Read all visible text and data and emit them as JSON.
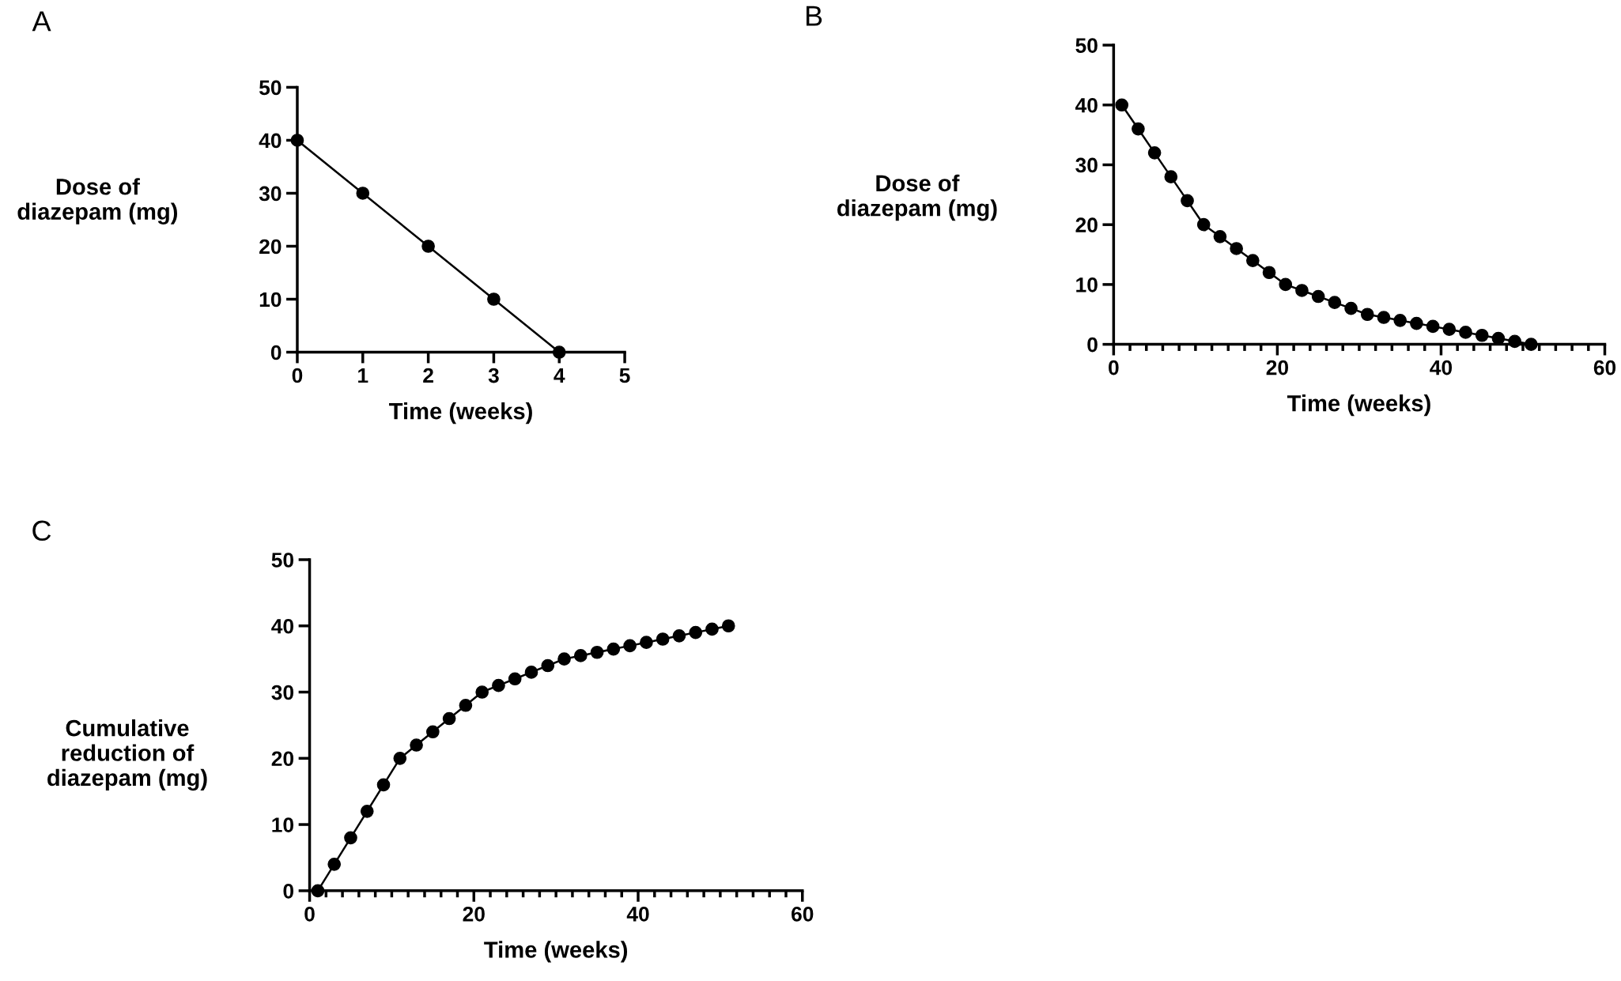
{
  "chart_data": [
    {
      "type": "line",
      "annotations": [
        "A"
      ],
      "xlabel": "Time (weeks)",
      "ylabel": "Dose of\ndiazepam (mg)",
      "marker": "circle",
      "line_style": "solid",
      "grid": false,
      "series": [
        {
          "color": "#000000",
          "x": [
            0,
            1,
            2,
            3,
            4
          ],
          "values": [
            40,
            30,
            20,
            10,
            0
          ]
        }
      ],
      "xlim": [
        0,
        5
      ],
      "xticks": [
        0,
        1,
        2,
        3,
        4,
        5
      ],
      "ylim": [
        0,
        50
      ],
      "yticks": [
        0,
        10,
        20,
        30,
        40,
        50
      ]
    },
    {
      "type": "line",
      "annotations": [
        "B"
      ],
      "xlabel": "Time (weeks)",
      "ylabel": "Dose of\ndiazepam (mg)",
      "marker": "circle",
      "line_style": "solid",
      "grid": false,
      "series": [
        {
          "color": "#000000",
          "x": [
            1,
            3,
            5,
            7,
            9,
            11,
            13,
            15,
            17,
            19,
            21,
            23,
            25,
            27,
            29,
            31,
            33,
            35,
            37,
            39,
            41,
            43,
            45,
            47,
            49,
            51
          ],
          "values": [
            40,
            36,
            32,
            28,
            24,
            20,
            18,
            16,
            14,
            12,
            10,
            9,
            8,
            7,
            6,
            5,
            4.5,
            4,
            3.5,
            3,
            2.5,
            2,
            1.5,
            1,
            0.5,
            0
          ]
        }
      ],
      "xlim": [
        0,
        60
      ],
      "xticks": [
        0,
        {
          "value": 2,
          "label": null
        },
        {
          "value": 4,
          "label": null
        },
        {
          "value": 6,
          "label": null
        },
        {
          "value": 8,
          "label": null
        },
        {
          "value": 10,
          "label": null
        },
        {
          "value": 12,
          "label": null
        },
        {
          "value": 14,
          "label": null
        },
        {
          "value": 16,
          "label": null
        },
        {
          "value": 18,
          "label": null
        },
        20,
        {
          "value": 22,
          "label": null
        },
        {
          "value": 24,
          "label": null
        },
        {
          "value": 26,
          "label": null
        },
        {
          "value": 28,
          "label": null
        },
        {
          "value": 30,
          "label": null
        },
        {
          "value": 32,
          "label": null
        },
        {
          "value": 34,
          "label": null
        },
        {
          "value": 36,
          "label": null
        },
        {
          "value": 38,
          "label": null
        },
        40,
        {
          "value": 42,
          "label": null
        },
        {
          "value": 44,
          "label": null
        },
        {
          "value": 46,
          "label": null
        },
        {
          "value": 48,
          "label": null
        },
        {
          "value": 50,
          "label": null
        },
        {
          "value": 52,
          "label": null
        },
        {
          "value": 54,
          "label": null
        },
        {
          "value": 56,
          "label": null
        },
        {
          "value": 58,
          "label": null
        },
        60
      ],
      "ylim": [
        0,
        50
      ],
      "yticks": [
        0,
        10,
        20,
        30,
        40,
        50
      ]
    },
    {
      "type": "line",
      "annotations": [
        "C"
      ],
      "xlabel": "Time (weeks)",
      "ylabel": "Cumulative\nreduction of\ndiazepam (mg)",
      "marker": "circle",
      "line_style": "solid",
      "grid": false,
      "series": [
        {
          "color": "#000000",
          "x": [
            1,
            3,
            5,
            7,
            9,
            11,
            13,
            15,
            17,
            19,
            21,
            23,
            25,
            27,
            29,
            31,
            33,
            35,
            37,
            39,
            41,
            43,
            45,
            47,
            49,
            51
          ],
          "values": [
            0,
            4,
            8,
            12,
            16,
            20,
            22,
            24,
            26,
            28,
            30,
            31,
            32,
            33,
            34,
            35,
            35.5,
            36,
            36.5,
            37,
            37.5,
            38,
            38.5,
            39,
            39.5,
            40
          ]
        }
      ],
      "xlim": [
        0,
        60
      ],
      "xticks": [
        0,
        {
          "value": 2,
          "label": null
        },
        {
          "value": 4,
          "label": null
        },
        {
          "value": 6,
          "label": null
        },
        {
          "value": 8,
          "label": null
        },
        {
          "value": 10,
          "label": null
        },
        {
          "value": 12,
          "label": null
        },
        {
          "value": 14,
          "label": null
        },
        {
          "value": 16,
          "label": null
        },
        {
          "value": 18,
          "label": null
        },
        20,
        {
          "value": 22,
          "label": null
        },
        {
          "value": 24,
          "label": null
        },
        {
          "value": 26,
          "label": null
        },
        {
          "value": 28,
          "label": null
        },
        {
          "value": 30,
          "label": null
        },
        {
          "value": 32,
          "label": null
        },
        {
          "value": 34,
          "label": null
        },
        {
          "value": 36,
          "label": null
        },
        {
          "value": 38,
          "label": null
        },
        40,
        {
          "value": 42,
          "label": null
        },
        {
          "value": 44,
          "label": null
        },
        {
          "value": 46,
          "label": null
        },
        {
          "value": 48,
          "label": null
        },
        {
          "value": 50,
          "label": null
        },
        {
          "value": 52,
          "label": null
        },
        {
          "value": 54,
          "label": null
        },
        {
          "value": 56,
          "label": null
        },
        {
          "value": 58,
          "label": null
        },
        60
      ],
      "ylim": [
        0,
        50
      ],
      "yticks": [
        0,
        10,
        20,
        30,
        40,
        50
      ]
    }
  ]
}
